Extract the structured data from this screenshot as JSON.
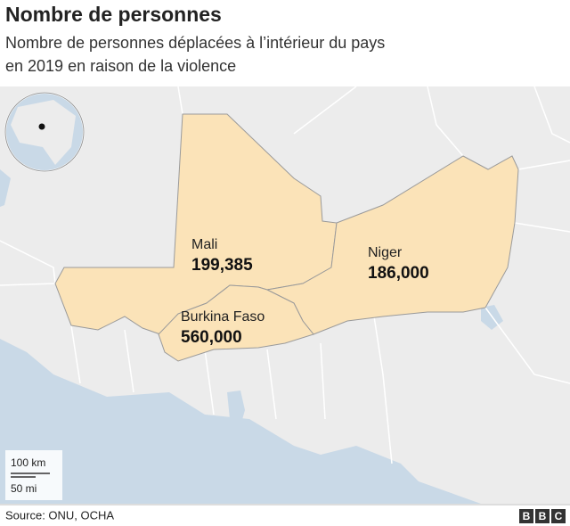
{
  "header": {
    "title": "Nombre de personnes",
    "subtitle_lines": [
      "Nombre de personnes déplacées à l’intérieur du pays",
      "en 2019 en raison de la violence"
    ]
  },
  "regions": [
    {
      "name": "Mali",
      "label": "199,385"
    },
    {
      "name": "Niger",
      "label": "186,000"
    },
    {
      "name": "Burkina Faso",
      "label": "560,000"
    }
  ],
  "scale": [
    "100 km",
    "50 mi"
  ],
  "footer": {
    "source": "Source: ONU, OCHA",
    "logo": [
      "B",
      "B",
      "C"
    ]
  }
}
